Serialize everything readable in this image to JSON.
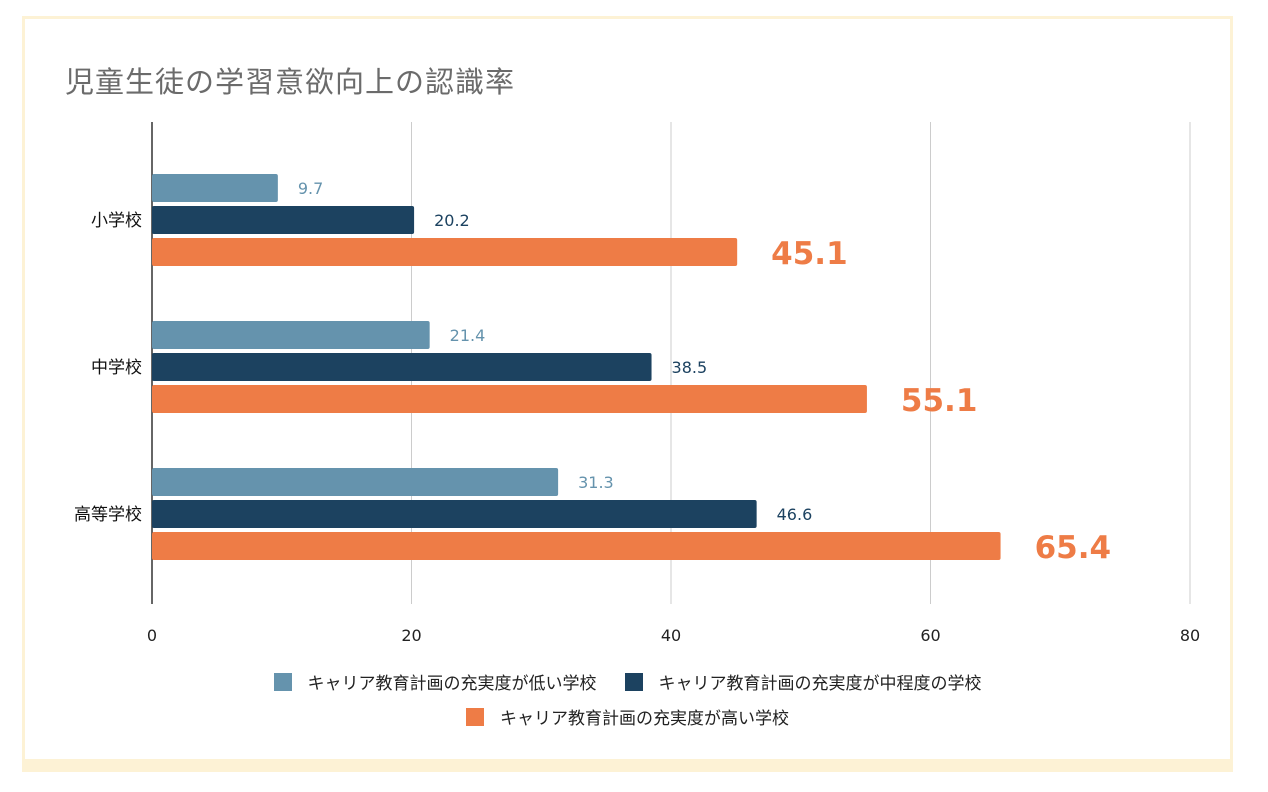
{
  "chart_data": {
    "type": "bar",
    "orientation": "horizontal",
    "title": "児童生徒の学習意欲向上の認識率",
    "categories": [
      "小学校",
      "中学校",
      "高等学校"
    ],
    "series": [
      {
        "name": "キャリア教育計画の充実度が低い学校",
        "values": [
          9.7,
          21.4,
          31.3
        ],
        "color": "#6593ad"
      },
      {
        "name": "キャリア教育計画の充実度が中程度の学校",
        "values": [
          20.2,
          38.5,
          46.6
        ],
        "color": "#1c4260"
      },
      {
        "name": "キャリア教育計画の充実度が高い学校",
        "values": [
          45.1,
          55.1,
          65.4
        ],
        "color": "#ee7c46"
      }
    ],
    "xlim": [
      0,
      80
    ],
    "xticks": [
      0,
      20,
      40,
      60,
      80
    ],
    "grid": true,
    "legend": "bottom"
  }
}
